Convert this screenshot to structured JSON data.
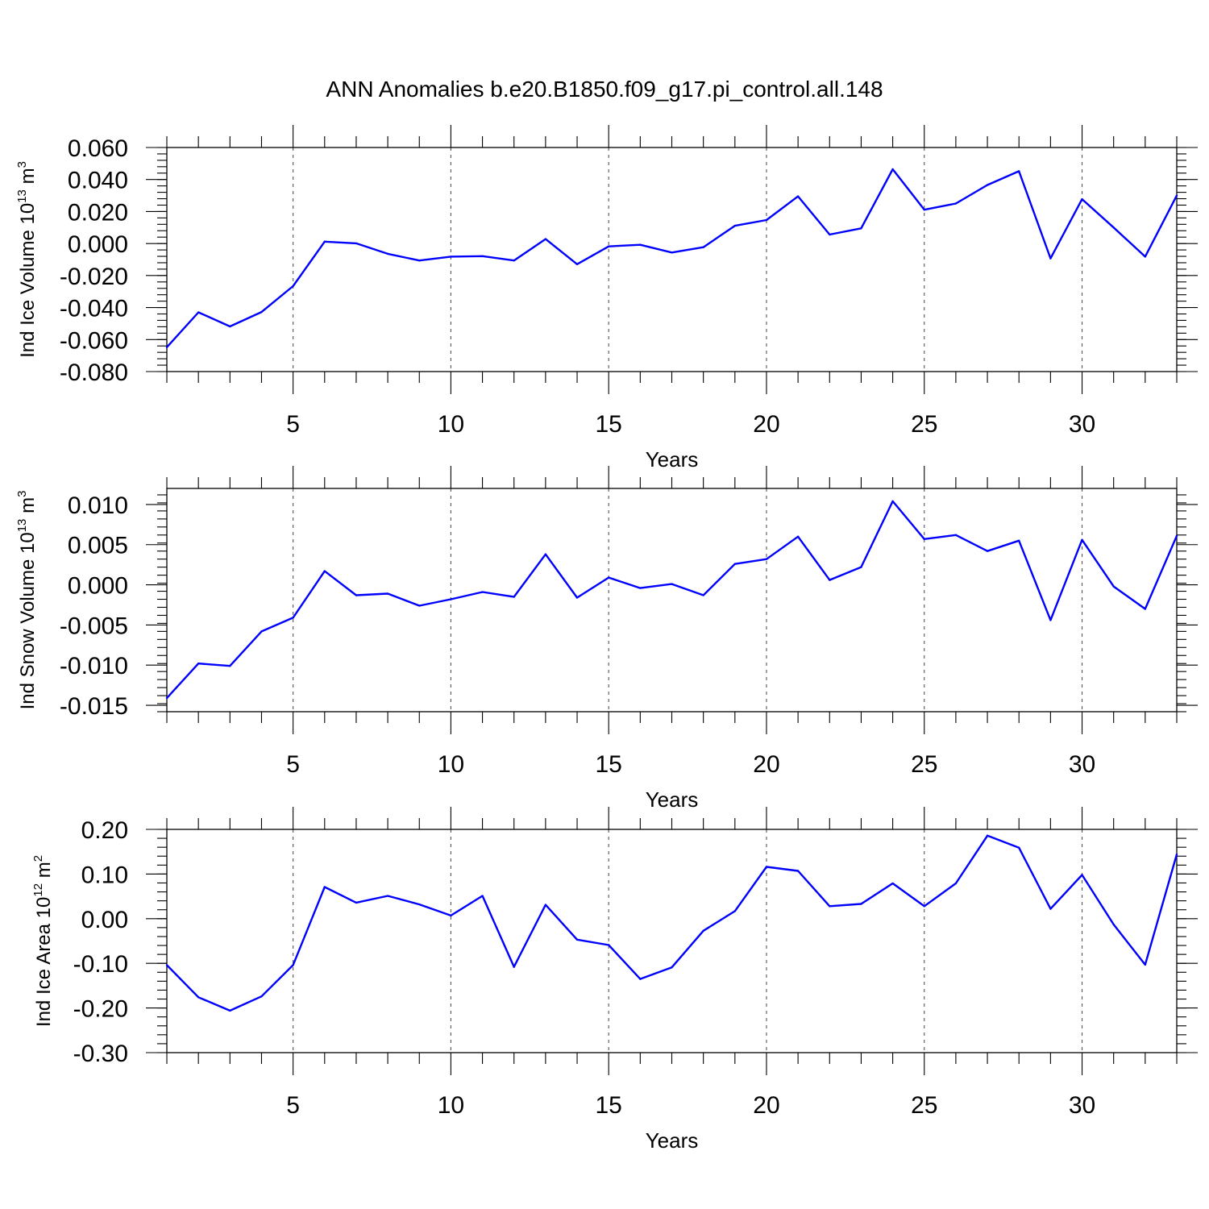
{
  "title": "ANN Anomalies b.e20.B1850.f09_g17.pi_control.all.148",
  "colors": {
    "line": "#0000ff",
    "axes": "#000000",
    "grid": "#555555"
  },
  "chart_data": [
    {
      "type": "line",
      "panel": "ice-volume",
      "ylabel": {
        "prefix": "Ind Ice Volume 10",
        "exponent": "13",
        "unit": " m",
        "unit_exponent": "3"
      },
      "xlabel": "Years",
      "xlim": [
        1,
        33
      ],
      "x_ticks": [
        5,
        10,
        15,
        20,
        25,
        30
      ],
      "x_tick_labels": [
        "5",
        "10",
        "15",
        "20",
        "25",
        "30"
      ],
      "ylim": [
        -0.08,
        0.06
      ],
      "y_ticks": [
        -0.08,
        -0.06,
        -0.04,
        -0.02,
        0.0,
        0.02,
        0.04,
        0.06
      ],
      "y_tick_labels": [
        "-0.080",
        "-0.060",
        "-0.040",
        "-0.020",
        "0.000",
        "0.020",
        "0.040",
        "0.060"
      ],
      "y_minor_step": 0.004,
      "x": [
        1,
        2,
        3,
        4,
        5,
        6,
        7,
        8,
        9,
        10,
        11,
        12,
        13,
        14,
        15,
        16,
        17,
        18,
        19,
        20,
        21,
        22,
        23,
        24,
        25,
        26,
        27,
        28,
        29,
        30,
        31,
        32,
        33
      ],
      "values": [
        -0.0648,
        -0.043,
        -0.0518,
        -0.0428,
        -0.0266,
        0.0012,
        0.0001,
        -0.0064,
        -0.0106,
        -0.0082,
        -0.0079,
        -0.0106,
        0.0028,
        -0.0129,
        -0.0018,
        -0.0008,
        -0.0056,
        -0.0023,
        0.0111,
        0.0147,
        0.0295,
        0.0056,
        0.0095,
        0.0464,
        0.0211,
        0.025,
        0.0366,
        0.0452,
        -0.0093,
        0.0277,
        0.01,
        -0.0082,
        0.03
      ]
    },
    {
      "type": "line",
      "panel": "snow-volume",
      "ylabel": {
        "prefix": "Ind Snow Volume 10",
        "exponent": "13",
        "unit": " m",
        "unit_exponent": "3"
      },
      "xlabel": "Years",
      "xlim": [
        1,
        33
      ],
      "x_ticks": [
        5,
        10,
        15,
        20,
        25,
        30
      ],
      "x_tick_labels": [
        "5",
        "10",
        "15",
        "20",
        "25",
        "30"
      ],
      "ylim": [
        -0.0158,
        0.012
      ],
      "y_ticks": [
        -0.015,
        -0.01,
        -0.005,
        0.0,
        0.005,
        0.01
      ],
      "y_tick_labels": [
        "-0.015",
        "-0.010",
        "-0.005",
        "0.000",
        "0.005",
        "0.010"
      ],
      "y_minor_step": 0.001,
      "x": [
        1,
        2,
        3,
        4,
        5,
        6,
        7,
        8,
        9,
        10,
        11,
        12,
        13,
        14,
        15,
        16,
        17,
        18,
        19,
        20,
        21,
        22,
        23,
        24,
        25,
        26,
        27,
        28,
        29,
        30,
        31,
        32,
        33
      ],
      "values": [
        -0.0141,
        -0.0098,
        -0.0101,
        -0.0058,
        -0.0041,
        0.0017,
        -0.0013,
        -0.0011,
        -0.0026,
        -0.0018,
        -0.0009,
        -0.0015,
        0.0038,
        -0.0016,
        0.0009,
        -0.0004,
        0.0001,
        -0.0013,
        0.0026,
        0.0032,
        0.006,
        0.0006,
        0.0022,
        0.0104,
        0.0057,
        0.0062,
        0.0042,
        0.0055,
        -0.0044,
        0.0056,
        -0.0002,
        -0.003,
        0.0061
      ]
    },
    {
      "type": "line",
      "panel": "ice-area",
      "ylabel": {
        "prefix": "Ind Ice Area 10",
        "exponent": "12",
        "unit": " m",
        "unit_exponent": "2"
      },
      "xlabel": "Years",
      "xlim": [
        1,
        33
      ],
      "x_ticks": [
        5,
        10,
        15,
        20,
        25,
        30
      ],
      "x_tick_labels": [
        "5",
        "10",
        "15",
        "20",
        "25",
        "30"
      ],
      "ylim": [
        -0.3,
        0.2
      ],
      "y_ticks": [
        -0.3,
        -0.2,
        -0.1,
        0.0,
        0.1,
        0.2
      ],
      "y_tick_labels": [
        "-0.30",
        "-0.20",
        "-0.10",
        "0.00",
        "0.10",
        "0.20"
      ],
      "y_minor_step": 0.02,
      "x": [
        1,
        2,
        3,
        4,
        5,
        6,
        7,
        8,
        9,
        10,
        11,
        12,
        13,
        14,
        15,
        16,
        17,
        18,
        19,
        20,
        21,
        22,
        23,
        24,
        25,
        26,
        27,
        28,
        29,
        30,
        31,
        32,
        33
      ],
      "values": [
        -0.104,
        -0.176,
        -0.206,
        -0.174,
        -0.104,
        0.071,
        0.036,
        0.051,
        0.032,
        0.007,
        0.051,
        -0.108,
        0.031,
        -0.047,
        -0.059,
        -0.135,
        -0.109,
        -0.027,
        0.017,
        0.116,
        0.107,
        0.028,
        0.033,
        0.079,
        0.028,
        0.079,
        0.186,
        0.159,
        0.022,
        0.098,
        -0.013,
        -0.103,
        0.144
      ]
    }
  ]
}
